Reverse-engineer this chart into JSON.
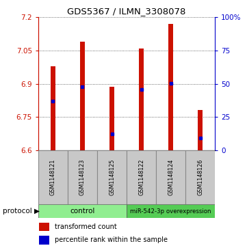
{
  "title": "GDS5367 / ILMN_3308078",
  "samples": [
    "GSM1148121",
    "GSM1148123",
    "GSM1148125",
    "GSM1148122",
    "GSM1148124",
    "GSM1148126"
  ],
  "bar_tops": [
    6.98,
    7.09,
    6.885,
    7.06,
    7.17,
    6.78
  ],
  "bar_bottom": 6.6,
  "blue_values": [
    6.82,
    6.885,
    6.672,
    6.875,
    6.902,
    6.655
  ],
  "ylim_left": [
    6.6,
    7.2
  ],
  "yticks_left": [
    6.6,
    6.75,
    6.9,
    7.05,
    7.2
  ],
  "ylim_right": [
    0,
    100
  ],
  "yticks_right": [
    0,
    25,
    50,
    75,
    100
  ],
  "ytick_labels_right": [
    "0",
    "25",
    "50",
    "75",
    "100%"
  ],
  "bar_color": "#CC1100",
  "blue_color": "#0000CC",
  "grid_color": "#404040",
  "control_color": "#90EE90",
  "overexp_color": "#55CC55",
  "sample_bg_color": "#C8C8C8",
  "protocol_groups": [
    {
      "label": "control"
    },
    {
      "label": "miR-542-3p overexpression"
    }
  ],
  "figsize": [
    3.61,
    3.63
  ],
  "dpi": 100
}
